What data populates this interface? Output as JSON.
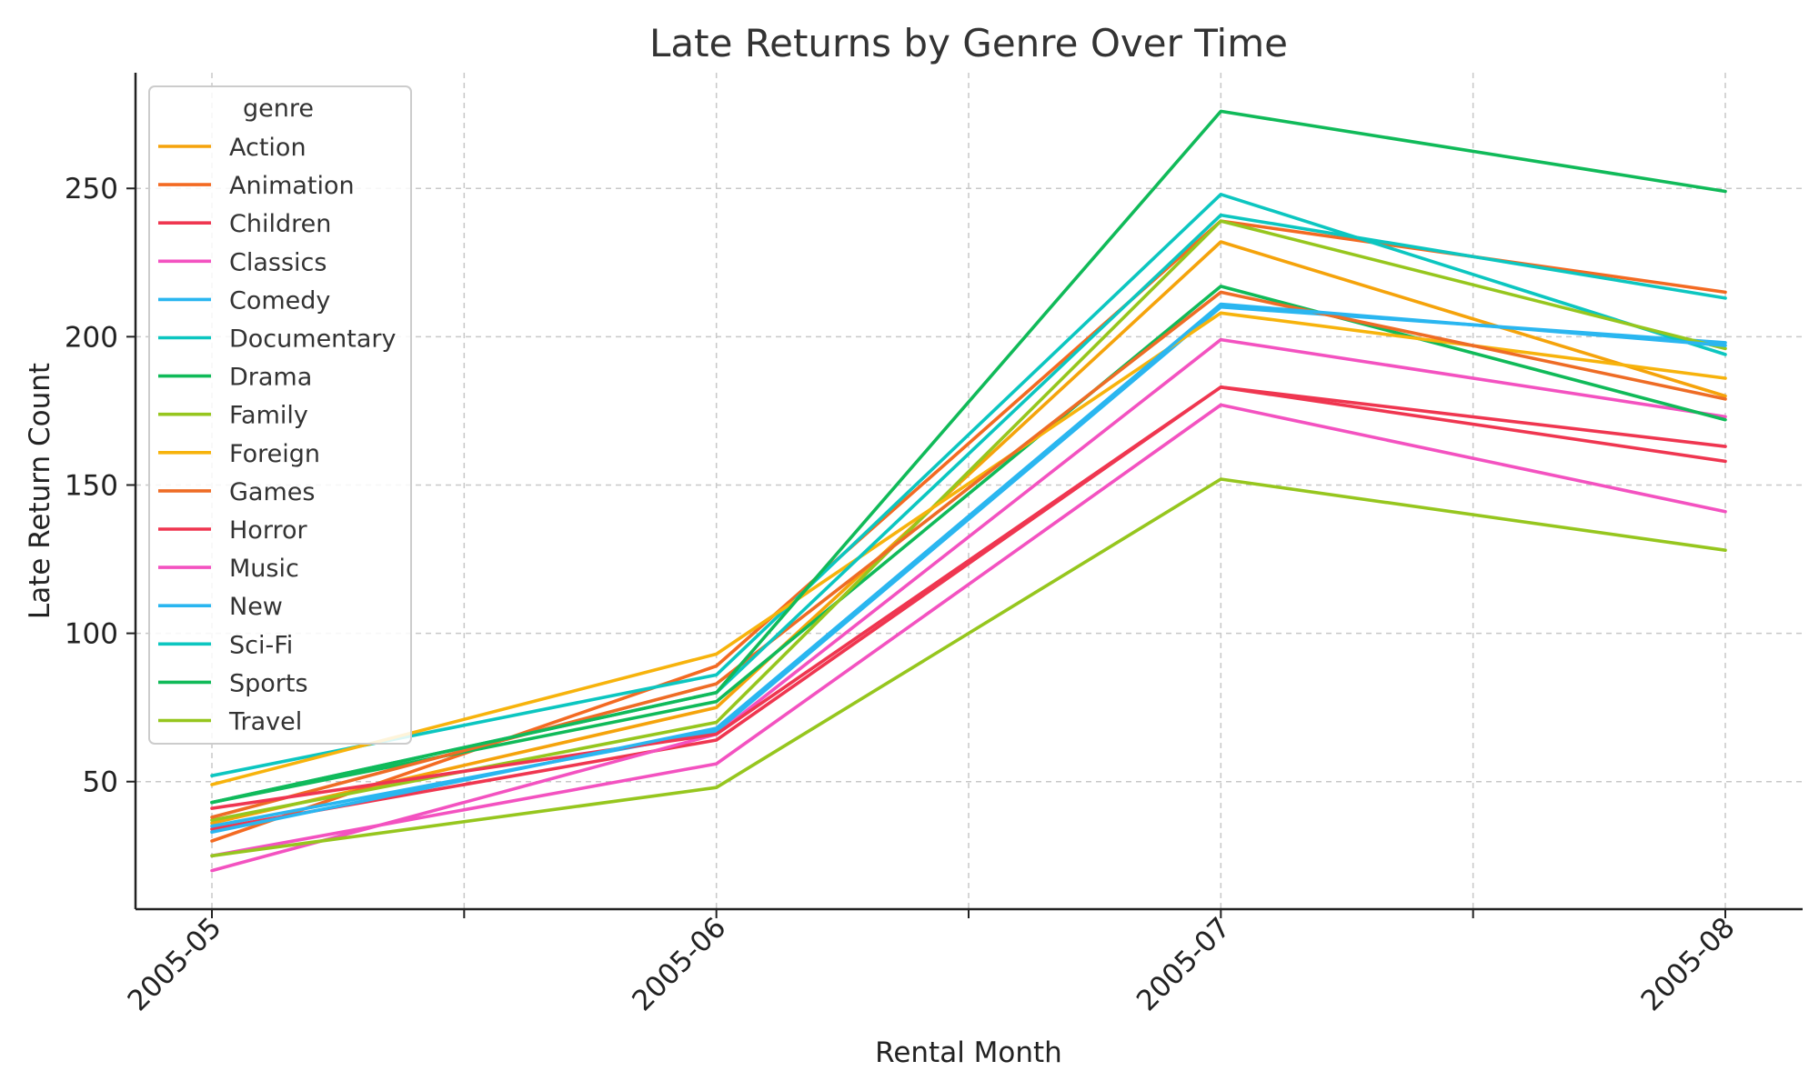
{
  "chart_data": {
    "type": "line",
    "title": "Late Returns by Genre Over Time",
    "xlabel": "Rental Month",
    "ylabel": "Late Return Count",
    "categories": [
      "2005-05",
      "2005-06",
      "2005-07",
      "2005-08"
    ],
    "ylim": [
      7,
      289
    ],
    "yticks": [
      50,
      100,
      150,
      200,
      250
    ],
    "grid": true,
    "legend": {
      "title": "genre",
      "placement": "top-left"
    },
    "series": [
      {
        "name": "Action",
        "color": "#f5a30b",
        "values": [
          36,
          75,
          232,
          180
        ]
      },
      {
        "name": "Animation",
        "color": "#f36a22",
        "values": [
          30,
          89,
          239,
          215
        ]
      },
      {
        "name": "Children",
        "color": "#ef3650",
        "values": [
          34,
          64,
          183,
          163
        ]
      },
      {
        "name": "Classics",
        "color": "#f352c0",
        "values": [
          20,
          66,
          199,
          173
        ]
      },
      {
        "name": "Comedy",
        "color": "#2ab6f0",
        "values": [
          35,
          67,
          210,
          198
        ]
      },
      {
        "name": "Documentary",
        "color": "#0cc6c0",
        "values": [
          52,
          86,
          248,
          194
        ]
      },
      {
        "name": "Drama",
        "color": "#10ba59",
        "values": [
          43,
          77,
          217,
          172
        ]
      },
      {
        "name": "Family",
        "color": "#96c61e",
        "values": [
          37,
          70,
          239,
          196
        ]
      },
      {
        "name": "Foreign",
        "color": "#f7b30c",
        "values": [
          49,
          93,
          208,
          186
        ]
      },
      {
        "name": "Games",
        "color": "#ee6c25",
        "values": [
          38,
          83,
          215,
          179
        ]
      },
      {
        "name": "Horror",
        "color": "#ef3650",
        "values": [
          41,
          66,
          183,
          158
        ]
      },
      {
        "name": "Music",
        "color": "#f352c0",
        "values": [
          25,
          56,
          177,
          141
        ]
      },
      {
        "name": "New",
        "color": "#2ab6f0",
        "values": [
          33,
          68,
          211,
          197
        ]
      },
      {
        "name": "Sci-Fi",
        "color": "#0cc6c0",
        "values": [
          43,
          80,
          241,
          213
        ]
      },
      {
        "name": "Sports",
        "color": "#10ba59",
        "values": [
          43,
          80,
          276,
          249
        ]
      },
      {
        "name": "Travel",
        "color": "#96c61e",
        "values": [
          25,
          48,
          152,
          128
        ]
      }
    ]
  }
}
